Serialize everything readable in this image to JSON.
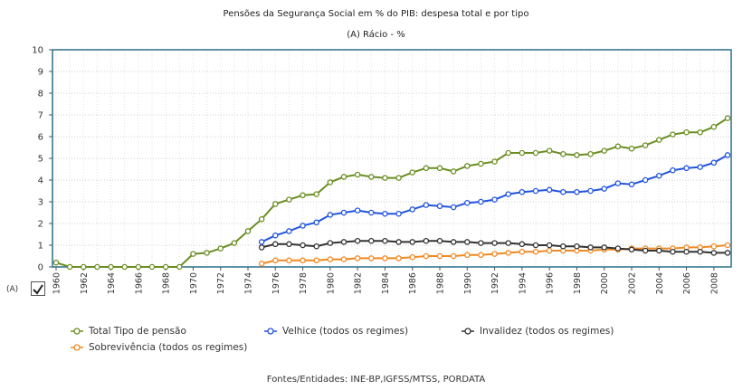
{
  "title": "Pensões da Segurança Social em % do PIB: despesa total e por tipo",
  "subtitle": "(A) Rácio - %",
  "series_tag": "(A)",
  "sources": "Fontes/Entidades: INE-BP,IGFSS/MTSS, PORDATA",
  "colors": {
    "frame": "#2a6f8a",
    "grid": "#cfcfcf",
    "total": "#6b8e23",
    "velhice": "#2255dd",
    "invalidez": "#333333",
    "sobrevivencia": "#f08a24"
  },
  "chart_data": {
    "type": "line",
    "ylim": [
      0,
      10
    ],
    "yticks": [
      0,
      1,
      2,
      3,
      4,
      5,
      6,
      7,
      8,
      9,
      10
    ],
    "xlim": [
      1960,
      2009
    ],
    "xticks": [
      "1960",
      "1962",
      "1964",
      "1966",
      "1968",
      "1970",
      "1972",
      "1974",
      "1976",
      "1978",
      "1980",
      "1982",
      "1984",
      "1986",
      "1988",
      "1990",
      "1992",
      "1994",
      "1996",
      "1998",
      "2000",
      "2002",
      "2004",
      "2006",
      "2008"
    ],
    "grid": true,
    "legend_position": "bottom",
    "series": [
      {
        "key": "total",
        "name": "Total Tipo de pensão",
        "x": [
          1960,
          1961,
          1962,
          1963,
          1964,
          1965,
          1966,
          1967,
          1968,
          1969,
          1970,
          1971,
          1972,
          1973,
          1974,
          1975,
          1976,
          1977,
          1978,
          1979,
          1980,
          1981,
          1982,
          1983,
          1984,
          1985,
          1986,
          1987,
          1988,
          1989,
          1990,
          1991,
          1992,
          1993,
          1994,
          1995,
          1996,
          1997,
          1998,
          1999,
          2000,
          2001,
          2002,
          2003,
          2004,
          2005,
          2006,
          2007,
          2008,
          2009
        ],
        "values": [
          0.2,
          0.0,
          0.0,
          0.0,
          0.0,
          0.0,
          0.0,
          0.0,
          0.0,
          0.0,
          0.6,
          0.65,
          0.85,
          1.1,
          1.65,
          2.2,
          2.9,
          3.1,
          3.3,
          3.35,
          3.9,
          4.15,
          4.25,
          4.15,
          4.1,
          4.1,
          4.35,
          4.55,
          4.55,
          4.4,
          4.65,
          4.75,
          4.85,
          5.25,
          5.25,
          5.25,
          5.35,
          5.2,
          5.15,
          5.2,
          5.35,
          5.55,
          5.45,
          5.6,
          5.85,
          6.1,
          6.2,
          6.2,
          6.45,
          6.85
        ]
      },
      {
        "key": "velhice",
        "name": "Velhice (todos os regimes)",
        "x": [
          1975,
          1976,
          1977,
          1978,
          1979,
          1980,
          1981,
          1982,
          1983,
          1984,
          1985,
          1986,
          1987,
          1988,
          1989,
          1990,
          1991,
          1992,
          1993,
          1994,
          1995,
          1996,
          1997,
          1998,
          1999,
          2000,
          2001,
          2002,
          2003,
          2004,
          2005,
          2006,
          2007,
          2008,
          2009
        ],
        "values": [
          1.15,
          1.45,
          1.65,
          1.9,
          2.05,
          2.4,
          2.5,
          2.6,
          2.5,
          2.45,
          2.45,
          2.65,
          2.85,
          2.8,
          2.75,
          2.95,
          3.0,
          3.1,
          3.35,
          3.45,
          3.5,
          3.55,
          3.45,
          3.45,
          3.5,
          3.6,
          3.85,
          3.8,
          4.0,
          4.2,
          4.45,
          4.55,
          4.6,
          4.8,
          5.15
        ]
      },
      {
        "key": "invalidez",
        "name": "Invalidez (todos os regimes)",
        "x": [
          1975,
          1976,
          1977,
          1978,
          1979,
          1980,
          1981,
          1982,
          1983,
          1984,
          1985,
          1986,
          1987,
          1988,
          1989,
          1990,
          1991,
          1992,
          1993,
          1994,
          1995,
          1996,
          1997,
          1998,
          1999,
          2000,
          2001,
          2002,
          2003,
          2004,
          2005,
          2006,
          2007,
          2008,
          2009
        ],
        "values": [
          0.9,
          1.05,
          1.05,
          1.0,
          0.95,
          1.1,
          1.15,
          1.2,
          1.2,
          1.2,
          1.15,
          1.15,
          1.2,
          1.2,
          1.15,
          1.15,
          1.1,
          1.1,
          1.1,
          1.05,
          1.0,
          1.0,
          0.95,
          0.95,
          0.9,
          0.9,
          0.85,
          0.8,
          0.75,
          0.75,
          0.7,
          0.7,
          0.7,
          0.65,
          0.65
        ]
      },
      {
        "key": "sobrevivencia",
        "name": "Sobrevivência (todos os regimes)",
        "x": [
          1975,
          1976,
          1977,
          1978,
          1979,
          1980,
          1981,
          1982,
          1983,
          1984,
          1985,
          1986,
          1987,
          1988,
          1989,
          1990,
          1991,
          1992,
          1993,
          1994,
          1995,
          1996,
          1997,
          1998,
          1999,
          2000,
          2001,
          2002,
          2003,
          2004,
          2005,
          2006,
          2007,
          2008,
          2009
        ],
        "values": [
          0.15,
          0.3,
          0.3,
          0.3,
          0.3,
          0.35,
          0.35,
          0.4,
          0.4,
          0.4,
          0.4,
          0.45,
          0.5,
          0.5,
          0.5,
          0.55,
          0.55,
          0.6,
          0.65,
          0.7,
          0.7,
          0.75,
          0.75,
          0.75,
          0.75,
          0.8,
          0.8,
          0.85,
          0.85,
          0.85,
          0.85,
          0.9,
          0.9,
          0.95,
          1.0
        ]
      }
    ]
  }
}
